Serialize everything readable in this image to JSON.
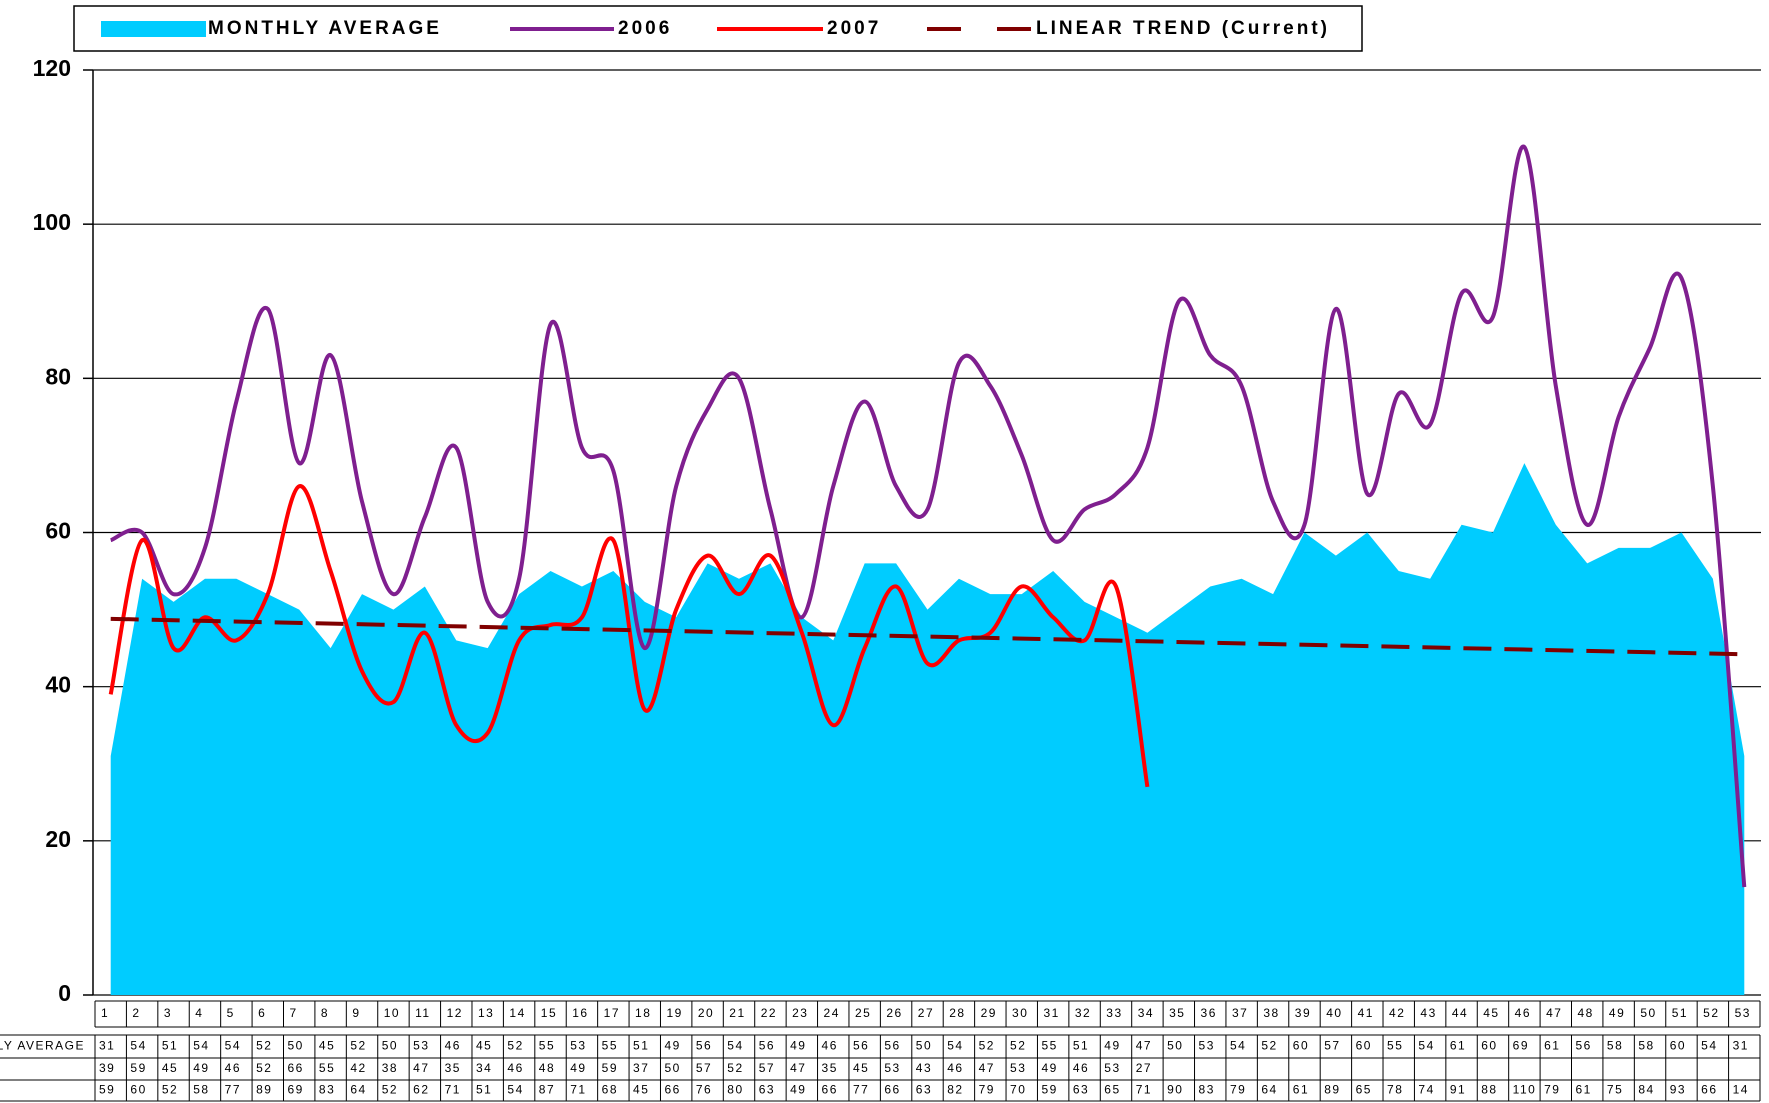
{
  "chart_data": {
    "type": "line",
    "categories": [
      1,
      2,
      3,
      4,
      5,
      6,
      7,
      8,
      9,
      10,
      11,
      12,
      13,
      14,
      15,
      16,
      17,
      18,
      19,
      20,
      21,
      22,
      23,
      24,
      25,
      26,
      27,
      28,
      29,
      30,
      31,
      32,
      33,
      34,
      35,
      36,
      37,
      38,
      39,
      40,
      41,
      42,
      43,
      44,
      45,
      46,
      47,
      48,
      49,
      50,
      51,
      52,
      53
    ],
    "series": [
      {
        "name": "MONTHLY AVERAGE",
        "table_label": "MONTHLY AVERAGE",
        "type": "area",
        "color": "#00ccff",
        "values": [
          31,
          54,
          51,
          54,
          54,
          52,
          50,
          45,
          52,
          50,
          53,
          46,
          45,
          52,
          55,
          53,
          55,
          51,
          49,
          56,
          54,
          56,
          49,
          46,
          56,
          56,
          50,
          54,
          52,
          52,
          55,
          51,
          49,
          47,
          50,
          53,
          54,
          52,
          60,
          57,
          60,
          55,
          54,
          61,
          60,
          69,
          61,
          56,
          58,
          58,
          60,
          54,
          31
        ]
      },
      {
        "name": "2006",
        "type": "line",
        "color": "#7f1f8f",
        "values": [
          59,
          60,
          52,
          58,
          77,
          89,
          69,
          83,
          64,
          52,
          62,
          71,
          51,
          54,
          87,
          71,
          68,
          45,
          66,
          76,
          80,
          63,
          49,
          66,
          77,
          66,
          63,
          82,
          79,
          70,
          59,
          63,
          65,
          71,
          90,
          83,
          79,
          64,
          61,
          89,
          65,
          78,
          74,
          91,
          88,
          110,
          79,
          61,
          75,
          84,
          93,
          66,
          14
        ]
      },
      {
        "name": "2007",
        "type": "line",
        "color": "#ff0000",
        "values": [
          39,
          59,
          45,
          49,
          46,
          52,
          66,
          55,
          42,
          38,
          47,
          35,
          34,
          46,
          48,
          49,
          59,
          37,
          50,
          57,
          52,
          57,
          47,
          35,
          45,
          53,
          43,
          46,
          47,
          53,
          49,
          46,
          53,
          27,
          null,
          null,
          null,
          null,
          null,
          null,
          null,
          null,
          null,
          null,
          null,
          null,
          null,
          null,
          null,
          null,
          null,
          null,
          null
        ]
      },
      {
        "name": "LINEAR TREND (Current)",
        "type": "trend",
        "color": "#800000",
        "dashed": true,
        "x": [
          1,
          53
        ],
        "values": [
          48.8,
          44.2
        ]
      }
    ],
    "ylim": [
      0,
      120
    ],
    "yticks": [
      0,
      20,
      40,
      60,
      80,
      100,
      120
    ],
    "grid": true,
    "legend": "top"
  }
}
